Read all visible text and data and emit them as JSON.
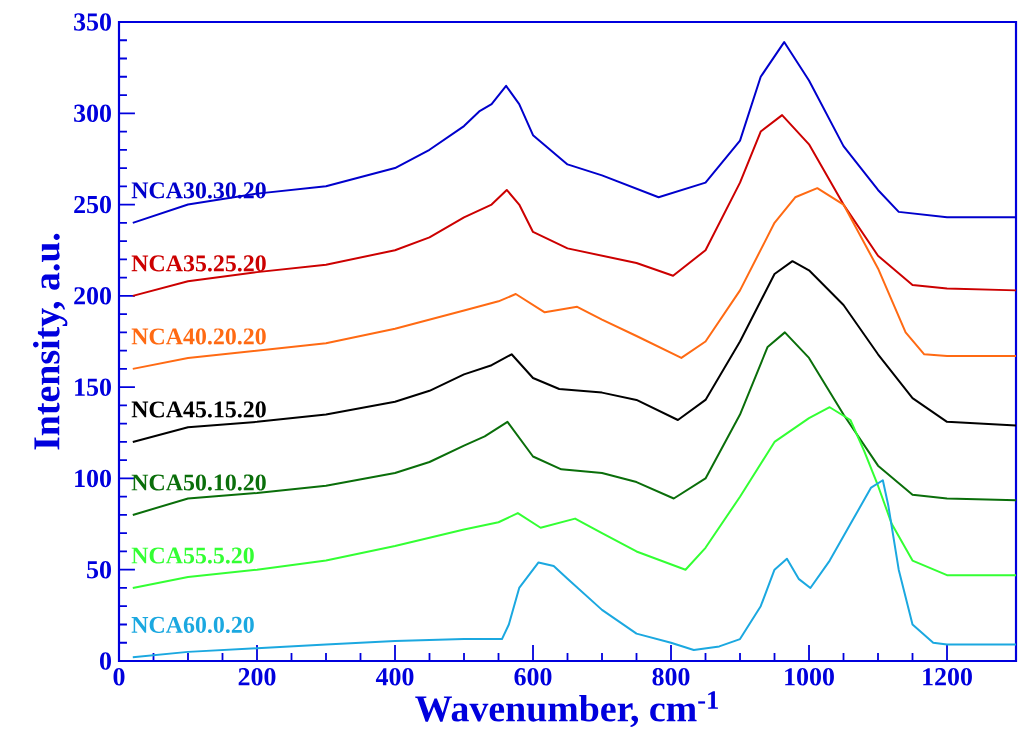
{
  "chart_data": {
    "type": "line",
    "xlabel": "Wavenumber, cm$^{-1}$",
    "ylabel": "Intensity, a.u.",
    "xlim": [
      0,
      1300
    ],
    "ylim": [
      0,
      350
    ],
    "xticks": [
      0,
      200,
      400,
      600,
      800,
      1000,
      1200
    ],
    "yticks": [
      0,
      50,
      100,
      150,
      200,
      250,
      300,
      350
    ],
    "marker": "none",
    "line_style": "solid",
    "series": [
      {
        "name": "NCA30.30.20",
        "color": "#0000cc",
        "x": [
          20,
          100,
          200,
          300,
          400,
          450,
          500,
          522,
          540,
          561,
          580,
          600,
          650,
          700,
          782,
          850,
          900,
          930,
          964,
          1000,
          1050,
          1100,
          1130,
          1200,
          1300
        ],
        "values": [
          240,
          250,
          256,
          260,
          270,
          280,
          293,
          301,
          305,
          315,
          305,
          288,
          272,
          266,
          254,
          262,
          285,
          320,
          339,
          318,
          282,
          258,
          246,
          243,
          243
        ]
      },
      {
        "name": "NCA35.25.20",
        "color": "#cc0000",
        "x": [
          20,
          100,
          200,
          300,
          400,
          450,
          500,
          540,
          562,
          580,
          600,
          650,
          700,
          750,
          803,
          850,
          900,
          930,
          961,
          1000,
          1050,
          1100,
          1150,
          1200,
          1300
        ],
        "values": [
          200,
          208,
          213,
          217,
          225,
          232,
          243,
          250,
          258,
          250,
          235,
          226,
          222,
          218,
          211,
          225,
          262,
          290,
          299,
          283,
          250,
          222,
          206,
          204,
          203
        ]
      },
      {
        "name": "NCA40.20.20",
        "color": "#ff6a13",
        "x": [
          20,
          100,
          200,
          300,
          400,
          500,
          550,
          575,
          617,
          664,
          700,
          750,
          815,
          850,
          900,
          950,
          980,
          1012,
          1050,
          1100,
          1140,
          1167,
          1200,
          1300
        ],
        "values": [
          160,
          166,
          170,
          174,
          182,
          192,
          197,
          201,
          191,
          194,
          187,
          178,
          166,
          175,
          203,
          240,
          254,
          259,
          250,
          215,
          180,
          168,
          167,
          167
        ]
      },
      {
        "name": "NCA45.15.20",
        "color": "#000000",
        "x": [
          20,
          100,
          200,
          300,
          400,
          450,
          500,
          540,
          569,
          600,
          638,
          700,
          750,
          810,
          850,
          900,
          950,
          976,
          1000,
          1050,
          1100,
          1150,
          1200,
          1300
        ],
        "values": [
          120,
          128,
          131,
          135,
          142,
          148,
          157,
          162,
          168,
          155,
          149,
          147,
          143,
          132,
          143,
          175,
          212,
          219,
          214,
          195,
          168,
          144,
          131,
          129
        ]
      },
      {
        "name": "NCA50.10.20",
        "color": "#0a6e0a",
        "x": [
          20,
          100,
          200,
          300,
          400,
          450,
          500,
          530,
          563,
          600,
          641,
          700,
          750,
          804,
          850,
          900,
          940,
          965,
          1000,
          1050,
          1100,
          1150,
          1200,
          1300
        ],
        "values": [
          80,
          89,
          92,
          96,
          103,
          109,
          118,
          123,
          131,
          112,
          105,
          103,
          98,
          89,
          100,
          135,
          172,
          180,
          166,
          135,
          107,
          91,
          89,
          88
        ]
      },
      {
        "name": "NCA55.5.20",
        "color": "#33ff33",
        "x": [
          20,
          100,
          200,
          300,
          400,
          500,
          550,
          578,
          611,
          661,
          700,
          750,
          821,
          850,
          900,
          950,
          1000,
          1030,
          1060,
          1080,
          1100,
          1120,
          1150,
          1200,
          1300
        ],
        "values": [
          40,
          46,
          50,
          55,
          63,
          72,
          76,
          81,
          73,
          78,
          70,
          60,
          50,
          62,
          90,
          120,
          133,
          139,
          132,
          115,
          96,
          75,
          55,
          47,
          47
        ]
      },
      {
        "name": "NCA60.0.20",
        "color": "#1ba8e0",
        "x": [
          20,
          100,
          200,
          300,
          400,
          500,
          555,
          565,
          580,
          608,
          630,
          650,
          700,
          750,
          800,
          833,
          870,
          900,
          930,
          950,
          968,
          985,
          1002,
          1030,
          1060,
          1090,
          1107,
          1115,
          1130,
          1150,
          1180,
          1200,
          1300
        ],
        "values": [
          2,
          5,
          7,
          9,
          11,
          12,
          12,
          20,
          40,
          54,
          52,
          45,
          28,
          15,
          10,
          6,
          8,
          12,
          30,
          50,
          56,
          45,
          40,
          55,
          75,
          95,
          99,
          85,
          50,
          20,
          10,
          9,
          9
        ]
      }
    ]
  }
}
